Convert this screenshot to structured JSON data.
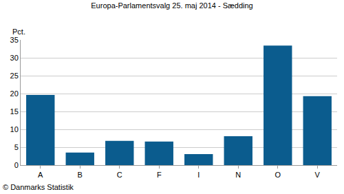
{
  "chart_data": {
    "type": "bar",
    "title": "Europa-Parlamentsvalg 25. maj 2014 - Sædding",
    "y_label": "Pct.",
    "annotations": [
      "© Danmarks Statistik"
    ],
    "categories": [
      "A",
      "B",
      "C",
      "F",
      "I",
      "N",
      "O",
      "V"
    ],
    "values": [
      19.6,
      3.5,
      6.8,
      6.6,
      3.1,
      8.1,
      33.4,
      19.3
    ],
    "color": "#0b5c8e",
    "ylim": [
      0,
      35
    ],
    "yticks": [
      0,
      5,
      10,
      15,
      20,
      25,
      30,
      35
    ],
    "grid": true
  }
}
